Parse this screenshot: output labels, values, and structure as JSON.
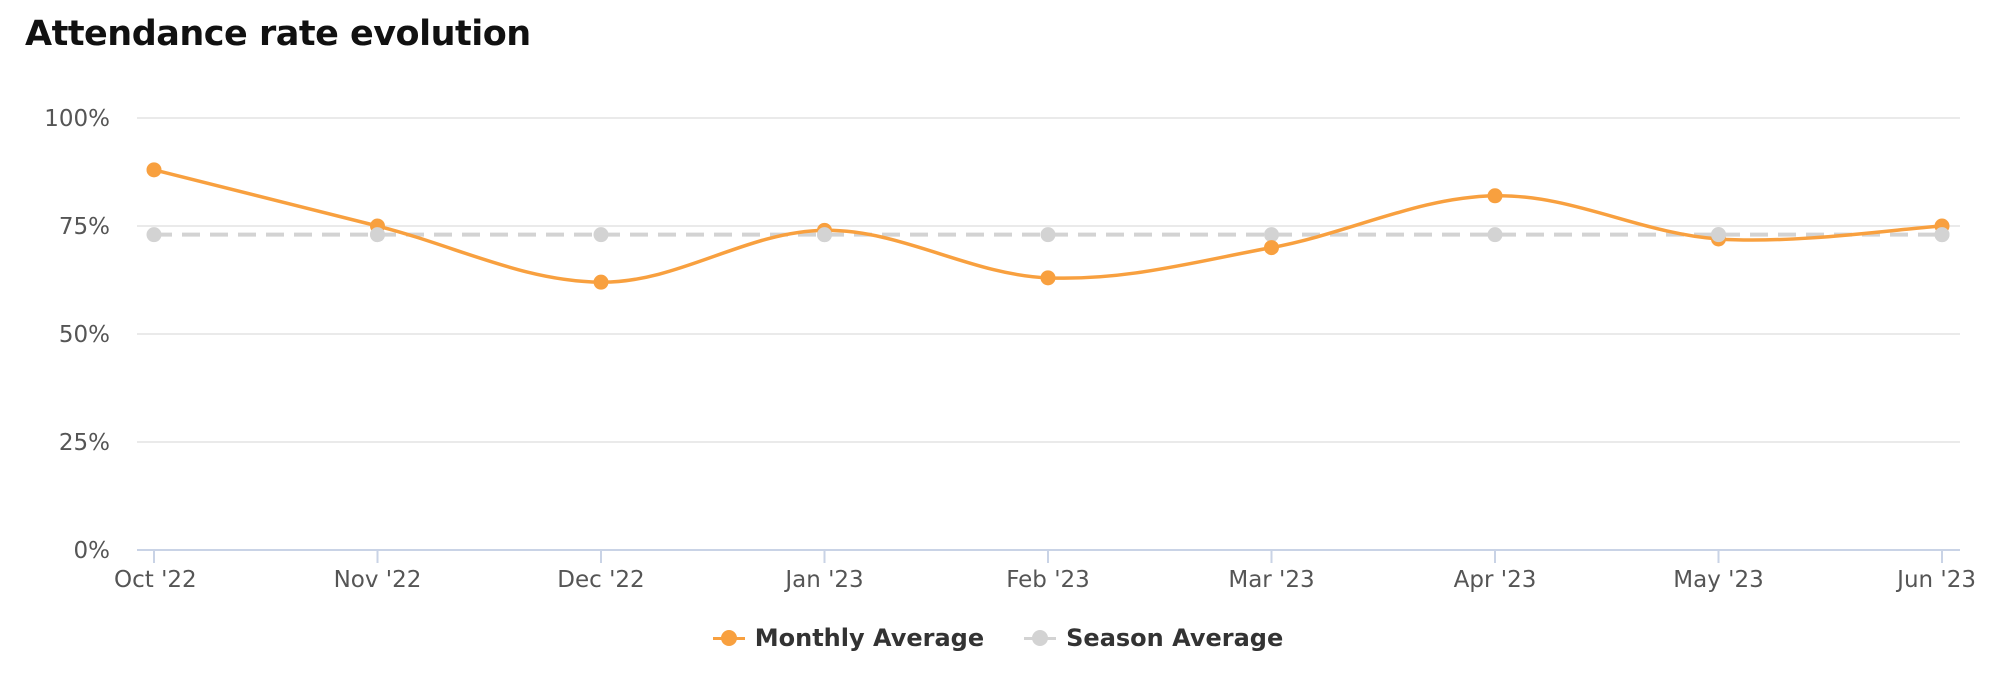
{
  "page": {
    "title": "Attendance rate evolution"
  },
  "legend": {
    "items": [
      {
        "label": "Monthly Average",
        "color": "#f8a03f"
      },
      {
        "label": "Season Average",
        "color": "#d3d3d3"
      }
    ]
  },
  "chart_data": {
    "type": "line",
    "title": "Attendance rate evolution",
    "categories": [
      "Oct '22",
      "Nov '22",
      "Dec '22",
      "Jan '23",
      "Feb '23",
      "Mar '23",
      "Apr '23",
      "May '23",
      "Jun '23"
    ],
    "y_ticks": [
      "0%",
      "25%",
      "50%",
      "75%",
      "100%"
    ],
    "ylim": [
      0,
      100
    ],
    "grid": true,
    "legend_position": "bottom-center",
    "series": [
      {
        "name": "Monthly Average",
        "values": [
          88,
          75,
          62,
          74,
          63,
          70,
          82,
          72,
          75
        ],
        "color": "#f8a03f",
        "style": "smooth-solid"
      },
      {
        "name": "Season Average",
        "values": [
          73,
          73,
          73,
          73,
          73,
          73,
          73,
          73,
          73
        ],
        "color": "#d3d3d3",
        "style": "dashed"
      }
    ]
  }
}
